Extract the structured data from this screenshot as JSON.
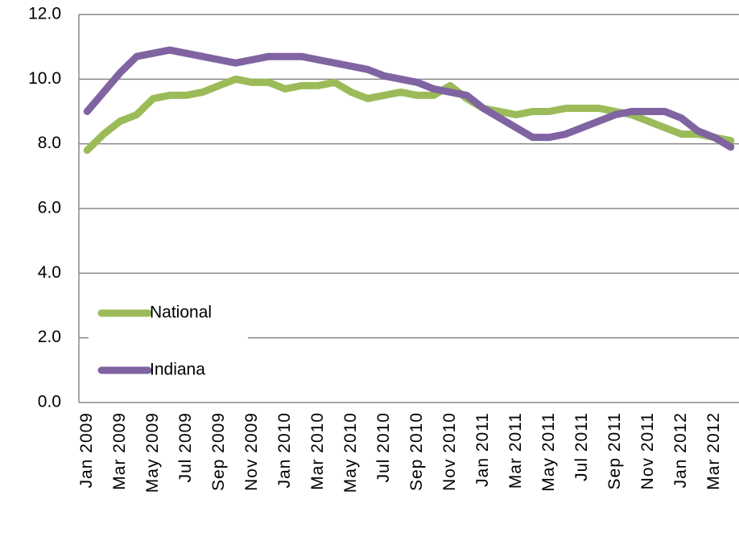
{
  "chart_data": {
    "type": "line",
    "categories": [
      "Jan 2009",
      null,
      "Mar 2009",
      null,
      "May 2009",
      null,
      "Jul 2009",
      null,
      "Sep 2009",
      null,
      "Nov 2009",
      null,
      "Jan 2010",
      null,
      "Mar 2010",
      null,
      "May 2010",
      null,
      "Jul 2010",
      null,
      "Sep 2010",
      null,
      "Nov 2010",
      null,
      "Jan 2011",
      null,
      "Mar 2011",
      null,
      "May 2011",
      null,
      "Jul 2011",
      null,
      "Sep 2011",
      null,
      "Nov 2011",
      null,
      "Jan 2012",
      null,
      "Mar 2012",
      null
    ],
    "series": [
      {
        "name": "National",
        "color": "#9bbb59",
        "values": [
          7.8,
          8.3,
          8.7,
          8.9,
          9.4,
          9.5,
          9.5,
          9.6,
          9.8,
          10.0,
          9.9,
          9.9,
          9.7,
          9.8,
          9.8,
          9.9,
          9.6,
          9.4,
          9.5,
          9.6,
          9.5,
          9.5,
          9.8,
          9.4,
          9.1,
          9.0,
          8.9,
          9.0,
          9.0,
          9.1,
          9.1,
          9.1,
          9.0,
          8.9,
          8.7,
          8.5,
          8.3,
          8.3,
          8.2,
          8.1
        ]
      },
      {
        "name": "Indiana",
        "color": "#8064a2",
        "values": [
          9.0,
          9.6,
          10.2,
          10.7,
          10.8,
          10.9,
          10.8,
          10.7,
          10.6,
          10.5,
          10.6,
          10.7,
          10.7,
          10.7,
          10.6,
          10.5,
          10.4,
          10.3,
          10.1,
          10.0,
          9.9,
          9.7,
          9.6,
          9.5,
          9.1,
          8.8,
          8.5,
          8.2,
          8.2,
          8.3,
          8.5,
          8.7,
          8.9,
          9.0,
          9.0,
          9.0,
          8.8,
          8.4,
          8.2,
          7.9
        ]
      }
    ],
    "ylim": [
      0,
      12
    ],
    "yticks": [
      {
        "value": 0,
        "label": "0.0"
      },
      {
        "value": 2,
        "label": "2.0"
      },
      {
        "value": 4,
        "label": "4.0"
      },
      {
        "value": 6,
        "label": "6.0"
      },
      {
        "value": 8,
        "label": "8.0"
      },
      {
        "value": 10,
        "label": "10.0"
      },
      {
        "value": 12,
        "label": "12.0"
      }
    ],
    "grid": true,
    "legend": "lower left"
  }
}
